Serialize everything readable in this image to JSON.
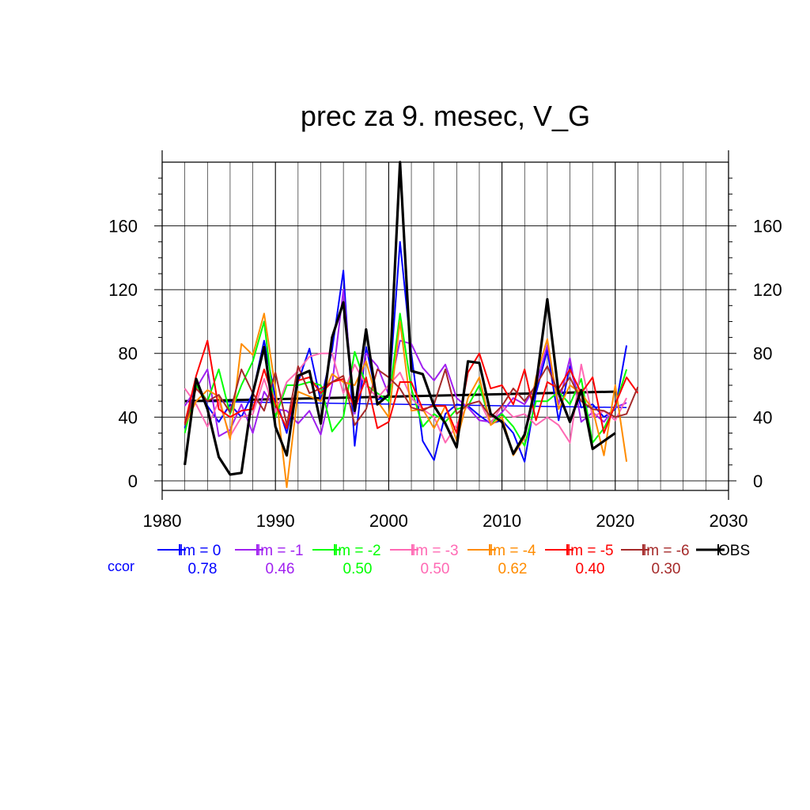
{
  "chart_data": {
    "type": "line",
    "title": "prec za 9. mesec, V_G",
    "xlim": [
      1980,
      2030
    ],
    "ylim": [
      -6,
      200
    ],
    "x_ticks": [
      1980,
      1990,
      2000,
      2010,
      2020,
      2030
    ],
    "y_ticks": [
      0,
      40,
      80,
      120,
      160
    ],
    "grid": true,
    "legend_position": "bottom",
    "ccor_label": "ccor",
    "colors": {
      "lm0": "#0000ff",
      "lm1": "#a020f0",
      "lm2": "#00ff00",
      "lm3": "#ff69b4",
      "lm4": "#ff8c00",
      "lm5": "#ff0000",
      "lm6": "#a52a2a",
      "obs": "#000000"
    },
    "series": [
      {
        "name": "lm = 0",
        "ccor": "0.78",
        "color": "#0000ff",
        "x": [
          1982,
          1983,
          1984,
          1985,
          1986,
          1987,
          1988,
          1989,
          1990,
          1991,
          1992,
          1993,
          1994,
          1995,
          1996,
          1997,
          1998,
          1999,
          2000,
          2001,
          2002,
          2003,
          2004,
          2005,
          2006,
          2007,
          2008,
          2009,
          2010,
          2011,
          2012,
          2013,
          2014,
          2015,
          2016,
          2017,
          2018,
          2019,
          2020,
          2021
        ],
        "y": [
          33,
          64,
          47,
          37,
          48,
          40,
          55,
          88,
          52,
          30,
          62,
          83,
          50,
          82,
          132,
          22,
          84,
          51,
          53,
          150,
          80,
          25,
          13,
          42,
          48,
          47,
          41,
          36,
          38,
          30,
          12,
          55,
          82,
          38,
          72,
          46,
          48,
          40,
          45,
          85
        ]
      },
      {
        "name": "lm = -1",
        "ccor": "0.46",
        "color": "#a020f0",
        "x": [
          1982,
          1983,
          1984,
          1985,
          1986,
          1987,
          1988,
          1989,
          1990,
          1991,
          1992,
          1993,
          1994,
          1995,
          1996,
          1997,
          1998,
          1999,
          2000,
          2001,
          2002,
          2003,
          2004,
          2005,
          2006,
          2007,
          2008,
          2009,
          2010,
          2011,
          2012,
          2013,
          2014,
          2015,
          2016,
          2017,
          2018,
          2019,
          2020,
          2021
        ],
        "y": [
          47,
          58,
          70,
          28,
          32,
          48,
          30,
          56,
          45,
          44,
          36,
          44,
          29,
          60,
          120,
          42,
          80,
          72,
          54,
          88,
          86,
          71,
          63,
          73,
          52,
          46,
          38,
          37,
          43,
          52,
          48,
          60,
          85,
          48,
          77,
          37,
          43,
          37,
          46,
          49
        ]
      },
      {
        "name": "lm = -2",
        "ccor": "0.50",
        "color": "#00ff00",
        "x": [
          1982,
          1983,
          1984,
          1985,
          1986,
          1987,
          1988,
          1989,
          1990,
          1991,
          1992,
          1993,
          1994,
          1995,
          1996,
          1997,
          1998,
          1999,
          2000,
          2001,
          2002,
          2003,
          2004,
          2005,
          2006,
          2007,
          2008,
          2009,
          2010,
          2011,
          2012,
          2013,
          2014,
          2015,
          2016,
          2017,
          2018,
          2019,
          2020,
          2021
        ],
        "y": [
          30,
          60,
          50,
          70,
          42,
          60,
          75,
          100,
          40,
          60,
          60,
          62,
          60,
          31,
          40,
          81,
          60,
          55,
          50,
          105,
          58,
          34,
          42,
          37,
          45,
          47,
          60,
          36,
          42,
          34,
          22,
          50,
          50,
          56,
          48,
          64,
          24,
          33,
          47,
          70
        ]
      },
      {
        "name": "lm = -3",
        "ccor": "0.50",
        "color": "#ff69b4",
        "x": [
          1982,
          1983,
          1984,
          1985,
          1986,
          1987,
          1988,
          1989,
          1990,
          1991,
          1992,
          1993,
          1994,
          1995,
          1996,
          1997,
          1998,
          1999,
          2000,
          2001,
          2002,
          2003,
          2004,
          2005,
          2006,
          2007,
          2008,
          2009,
          2010,
          2011,
          2012,
          2013,
          2014,
          2015,
          2016,
          2017,
          2018,
          2019,
          2020,
          2021
        ],
        "y": [
          58,
          48,
          34,
          50,
          28,
          40,
          42,
          64,
          43,
          62,
          69,
          78,
          80,
          80,
          55,
          73,
          60,
          52,
          60,
          68,
          52,
          45,
          40,
          24,
          35,
          48,
          50,
          36,
          47,
          40,
          42,
          35,
          40,
          35,
          24,
          73,
          40,
          44,
          38,
          52
        ]
      },
      {
        "name": "lm = -4",
        "ccor": "0.62",
        "color": "#ff8c00",
        "x": [
          1982,
          1983,
          1984,
          1985,
          1986,
          1987,
          1988,
          1989,
          1990,
          1991,
          1992,
          1993,
          1994,
          1995,
          1996,
          1997,
          1998,
          1999,
          2000,
          2001,
          2002,
          2003,
          2004,
          2005,
          2006,
          2007,
          2008,
          2009,
          2010,
          2011,
          2012,
          2013,
          2014,
          2015,
          2016,
          2017,
          2018,
          2019,
          2020,
          2021
        ],
        "y": [
          35,
          50,
          57,
          53,
          26,
          86,
          79,
          105,
          58,
          -4,
          56,
          53,
          50,
          67,
          62,
          60,
          75,
          50,
          40,
          100,
          44,
          45,
          33,
          47,
          25,
          52,
          65,
          35,
          40,
          16,
          27,
          65,
          89,
          45,
          60,
          55,
          45,
          16,
          60,
          12
        ]
      },
      {
        "name": "lm = -5",
        "ccor": "0.40",
        "color": "#ff0000",
        "x": [
          1982,
          1983,
          1984,
          1985,
          1986,
          1987,
          1988,
          1989,
          1990,
          1991,
          1992,
          1993,
          1994,
          1995,
          1996,
          1997,
          1998,
          1999,
          2000,
          2001,
          2002,
          2003,
          2004,
          2005,
          2006,
          2007,
          2008,
          2009,
          2010,
          2011,
          2012,
          2013,
          2014,
          2015,
          2016,
          2017,
          2018,
          2019,
          2020,
          2021,
          2022
        ],
        "y": [
          36,
          66,
          88,
          45,
          40,
          44,
          45,
          70,
          48,
          33,
          63,
          65,
          55,
          62,
          64,
          45,
          65,
          33,
          37,
          62,
          62,
          45,
          47,
          47,
          30,
          68,
          80,
          58,
          60,
          48,
          70,
          38,
          62,
          58,
          70,
          55,
          65,
          30,
          48,
          65,
          55
        ]
      },
      {
        "name": "lm = -6",
        "ccor": "0.30",
        "color": "#a52a2a",
        "x": [
          1982,
          1983,
          1984,
          1985,
          1986,
          1987,
          1988,
          1989,
          1990,
          1991,
          1992,
          1993,
          1994,
          1995,
          1996,
          1997,
          1998,
          1999,
          2000,
          2001,
          2002,
          2003,
          2004,
          2005,
          2006,
          2007,
          2008,
          2009,
          2010,
          2011,
          2012,
          2013,
          2014,
          2015,
          2016,
          2017,
          2018,
          2019,
          2020,
          2021,
          2022
        ],
        "y": [
          35,
          58,
          50,
          54,
          43,
          70,
          55,
          44,
          68,
          35,
          72,
          55,
          58,
          62,
          66,
          35,
          45,
          70,
          65,
          58,
          46,
          44,
          48,
          70,
          42,
          48,
          50,
          40,
          47,
          58,
          50,
          60,
          72,
          55,
          65,
          50,
          45,
          44,
          40,
          42,
          59
        ]
      },
      {
        "name": "OBS",
        "color": "#000000",
        "x": [
          1982,
          1983,
          1984,
          1985,
          1986,
          1987,
          1988,
          1989,
          1990,
          1991,
          1992,
          1993,
          1994,
          1995,
          1996,
          1997,
          1998,
          1999,
          2000,
          2001,
          2002,
          2003,
          2004,
          2005,
          2006,
          2007,
          2008,
          2009,
          2010,
          2011,
          2012,
          2013,
          2014,
          2015,
          2016,
          2017,
          2018,
          2019,
          2020
        ],
        "y": [
          10,
          64,
          45,
          15,
          4,
          5,
          55,
          84,
          34,
          16,
          66,
          69,
          36,
          90,
          112,
          44,
          95,
          48,
          54,
          200,
          69,
          67,
          47,
          36,
          21,
          75,
          74,
          42,
          37,
          17,
          29,
          60,
          114,
          55,
          37,
          57,
          20,
          25,
          30
        ]
      }
    ],
    "trend_lines": [
      {
        "series": "lm = 0",
        "color": "#0000ff",
        "x": [
          1982,
          2021
        ],
        "y": [
          50,
          46
        ]
      },
      {
        "series": "OBS",
        "color": "#000000",
        "x": [
          1982,
          2020
        ],
        "y": [
          50,
          56
        ]
      }
    ]
  }
}
